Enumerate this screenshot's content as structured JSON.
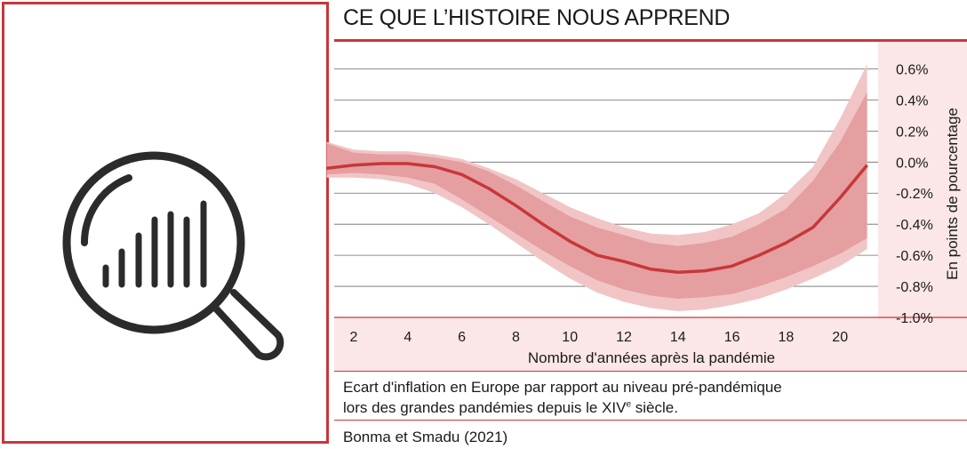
{
  "header": {
    "title": "CE QUE L’HISTOIRE NOUS APPREND"
  },
  "icon": {
    "name": "magnifier-bar-chart-icon",
    "color": "#2b2b2b",
    "frame_color": "#c8373a"
  },
  "caption": {
    "line1": "Ecart d'inflation en Europe par rapport au niveau pré-pandémique",
    "line2_before": "lors des grandes pandémies depuis le XIV",
    "line2_sup": "e",
    "line2_after": " siècle."
  },
  "source": "Bonma et Smadu (2021)",
  "colors": {
    "accent": "#c8373a",
    "band_outer": "#f1c5c6",
    "band_inner": "#e59fa1",
    "panel_bg": "#fbe7e7"
  },
  "chart_data": {
    "type": "line",
    "title": "",
    "xlabel": "Nombre d'années après la pandémie",
    "ylabel": "En points de pourcentage",
    "y_axis_side": "right",
    "xlim": [
      1,
      21
    ],
    "ylim": [
      -1.0,
      0.7
    ],
    "x_ticks": [
      2,
      4,
      6,
      8,
      10,
      12,
      14,
      16,
      18,
      20
    ],
    "y_ticks": [
      0.6,
      0.4,
      0.2,
      0.0,
      -0.2,
      -0.4,
      -0.6,
      -0.8,
      -1.0
    ],
    "y_tick_labels": [
      "0.6%",
      "0.4%",
      "0.2%",
      "0.0%",
      "-0.2%",
      "-0.4%",
      "-0.6%",
      "-0.8%",
      "-1.0%"
    ],
    "grid": "horizontal",
    "x": [
      1,
      2,
      3,
      4,
      5,
      6,
      7,
      8,
      9,
      10,
      11,
      12,
      13,
      14,
      15,
      16,
      17,
      18,
      19,
      20,
      21
    ],
    "series": [
      {
        "role": "estimate",
        "values": [
          -0.04,
          -0.02,
          -0.01,
          -0.01,
          -0.03,
          -0.08,
          -0.17,
          -0.28,
          -0.4,
          -0.51,
          -0.6,
          -0.64,
          -0.69,
          -0.71,
          -0.7,
          -0.67,
          -0.6,
          -0.52,
          -0.42,
          -0.23,
          -0.02
        ]
      },
      {
        "role": "inner_band_upper",
        "values": [
          0.12,
          0.06,
          0.05,
          0.05,
          0.03,
          0.0,
          -0.06,
          -0.15,
          -0.25,
          -0.35,
          -0.42,
          -0.47,
          -0.52,
          -0.54,
          -0.52,
          -0.48,
          -0.4,
          -0.3,
          -0.12,
          0.13,
          0.45
        ]
      },
      {
        "role": "inner_band_lower",
        "values": [
          -0.08,
          -0.07,
          -0.08,
          -0.1,
          -0.14,
          -0.24,
          -0.35,
          -0.46,
          -0.57,
          -0.67,
          -0.76,
          -0.82,
          -0.86,
          -0.88,
          -0.87,
          -0.85,
          -0.8,
          -0.74,
          -0.67,
          -0.59,
          -0.49
        ]
      },
      {
        "role": "outer_band_upper",
        "values": [
          0.13,
          0.08,
          0.07,
          0.07,
          0.05,
          0.02,
          -0.04,
          -0.11,
          -0.2,
          -0.29,
          -0.36,
          -0.42,
          -0.46,
          -0.47,
          -0.45,
          -0.4,
          -0.33,
          -0.2,
          -0.03,
          0.28,
          0.63
        ]
      },
      {
        "role": "outer_band_lower",
        "values": [
          -0.1,
          -0.1,
          -0.11,
          -0.14,
          -0.2,
          -0.29,
          -0.4,
          -0.52,
          -0.64,
          -0.75,
          -0.84,
          -0.9,
          -0.94,
          -0.96,
          -0.95,
          -0.92,
          -0.88,
          -0.82,
          -0.75,
          -0.67,
          -0.56
        ]
      }
    ]
  }
}
